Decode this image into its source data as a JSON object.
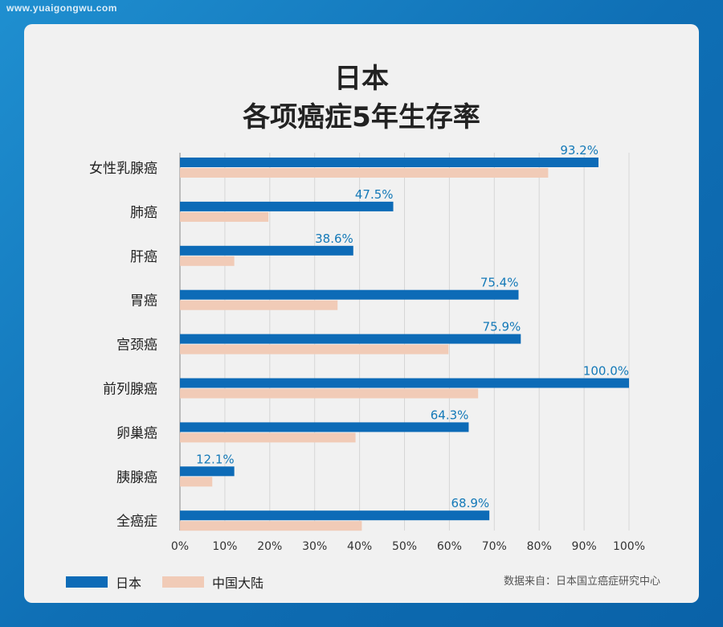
{
  "watermark": "www.yuaigongwu.com",
  "title_line1": "日本",
  "title_line2": "各项癌症5年生存率",
  "source": "数据来自：日本国立癌症研究中心",
  "colors": {
    "japan": "#0d6bb7",
    "china": "#f1cbb7",
    "label": "#1479b8"
  },
  "chart_data": {
    "type": "bar",
    "orientation": "horizontal",
    "categories": [
      "女性乳腺癌",
      "肺癌",
      "肝癌",
      "胃癌",
      "宫颈癌",
      "前列腺癌",
      "卵巢癌",
      "胰腺癌",
      "全癌症"
    ],
    "series": [
      {
        "name": "日本",
        "values": [
          93.2,
          47.5,
          38.6,
          75.4,
          75.9,
          100.0,
          64.3,
          12.1,
          68.9
        ],
        "labels": [
          "93.2%",
          "47.5%",
          "38.6%",
          "75.4%",
          "75.9%",
          "100.0%",
          "64.3%",
          "12.1%",
          "68.9%"
        ]
      },
      {
        "name": "中国大陆",
        "values": [
          82,
          19.7,
          12.1,
          35.1,
          59.8,
          66.4,
          39.1,
          7.2,
          40.5
        ]
      }
    ],
    "xlim": [
      0,
      100
    ],
    "xticks": [
      "0%",
      "10%",
      "20%",
      "30%",
      "40%",
      "50%",
      "60%",
      "70%",
      "80%",
      "90%",
      "100%"
    ],
    "grid": true,
    "legend_position": "bottom-left"
  }
}
